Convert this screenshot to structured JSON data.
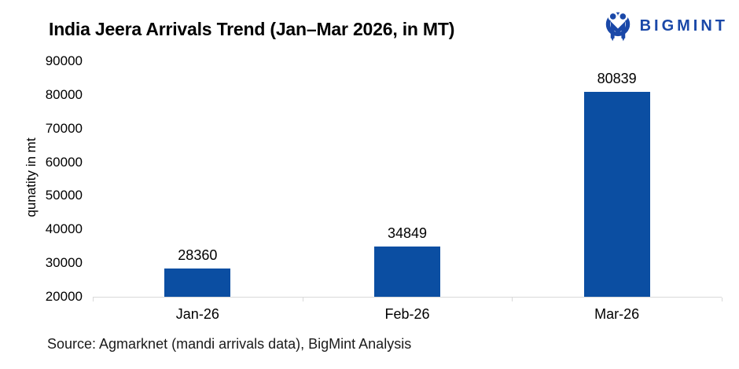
{
  "title": "India Jeera Arrivals Trend (Jan–Mar 2026, in MT)",
  "logo": {
    "text": "BIGMINT"
  },
  "source": "Source: Agmarknet (mandi arrivals data), BigMint Analysis",
  "colors": {
    "bar": "#0B4EA2",
    "logo": "#1A48A8",
    "axis": "#D9D9D9",
    "text": "#000000"
  },
  "chart_data": {
    "type": "bar",
    "categories": [
      "Jan-26",
      "Feb-26",
      "Mar-26"
    ],
    "values": [
      28360,
      34849,
      80839
    ],
    "title": "India Jeera Arrivals Trend (Jan–Mar 2026, in MT)",
    "xlabel": "",
    "ylabel": "qunatity in mt",
    "ylim": [
      20000,
      90000
    ],
    "yticks": [
      20000,
      30000,
      40000,
      50000,
      60000,
      70000,
      80000,
      90000
    ],
    "grid": false,
    "data_labels": true,
    "legend": "none"
  }
}
